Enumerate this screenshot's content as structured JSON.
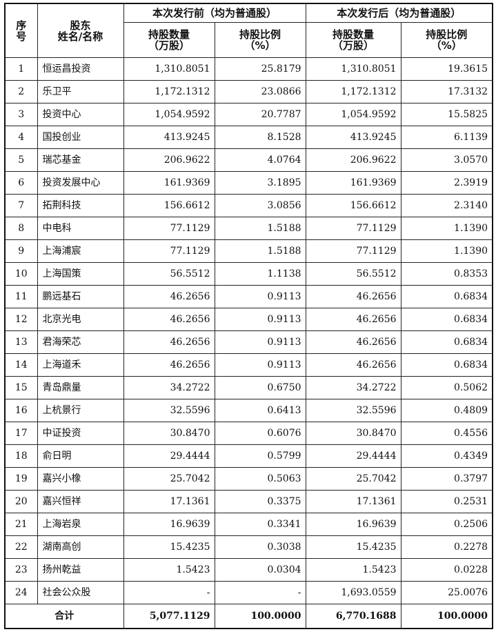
{
  "header": {
    "seq": "序\n号",
    "name": "股东\n姓名/名称",
    "group_before": "本次发行前（均为普通股）",
    "group_after": "本次发行后（均为普通股）",
    "shares": "持股数量\n（万股）",
    "ratio": "持股比例\n（%）"
  },
  "rows": [
    {
      "no": "1",
      "name": "恒运昌投资",
      "before_shares": "1,310.8051",
      "before_ratio": "25.8179",
      "after_shares": "1,310.8051",
      "after_ratio": "19.3615"
    },
    {
      "no": "2",
      "name": "乐卫平",
      "before_shares": "1,172.1312",
      "before_ratio": "23.0866",
      "after_shares": "1,172.1312",
      "after_ratio": "17.3132"
    },
    {
      "no": "3",
      "name": "投资中心",
      "before_shares": "1,054.9592",
      "before_ratio": "20.7787",
      "after_shares": "1,054.9592",
      "after_ratio": "15.5825"
    },
    {
      "no": "4",
      "name": "国投创业",
      "before_shares": "413.9245",
      "before_ratio": "8.1528",
      "after_shares": "413.9245",
      "after_ratio": "6.1139"
    },
    {
      "no": "5",
      "name": "瑞芯基金",
      "before_shares": "206.9622",
      "before_ratio": "4.0764",
      "after_shares": "206.9622",
      "after_ratio": "3.0570"
    },
    {
      "no": "6",
      "name": "投资发展中心",
      "before_shares": "161.9369",
      "before_ratio": "3.1895",
      "after_shares": "161.9369",
      "after_ratio": "2.3919"
    },
    {
      "no": "7",
      "name": "拓荆科技",
      "before_shares": "156.6612",
      "before_ratio": "3.0856",
      "after_shares": "156.6612",
      "after_ratio": "2.3140"
    },
    {
      "no": "8",
      "name": "中电科",
      "before_shares": "77.1129",
      "before_ratio": "1.5188",
      "after_shares": "77.1129",
      "after_ratio": "1.1390"
    },
    {
      "no": "9",
      "name": "上海浦宸",
      "before_shares": "77.1129",
      "before_ratio": "1.5188",
      "after_shares": "77.1129",
      "after_ratio": "1.1390"
    },
    {
      "no": "10",
      "name": "上海国策",
      "before_shares": "56.5512",
      "before_ratio": "1.1138",
      "after_shares": "56.5512",
      "after_ratio": "0.8353"
    },
    {
      "no": "11",
      "name": "鹏远基石",
      "before_shares": "46.2656",
      "before_ratio": "0.9113",
      "after_shares": "46.2656",
      "after_ratio": "0.6834"
    },
    {
      "no": "12",
      "name": "北京光电",
      "before_shares": "46.2656",
      "before_ratio": "0.9113",
      "after_shares": "46.2656",
      "after_ratio": "0.6834"
    },
    {
      "no": "13",
      "name": "君海荣芯",
      "before_shares": "46.2656",
      "before_ratio": "0.9113",
      "after_shares": "46.2656",
      "after_ratio": "0.6834"
    },
    {
      "no": "14",
      "name": "上海道禾",
      "before_shares": "46.2656",
      "before_ratio": "0.9113",
      "after_shares": "46.2656",
      "after_ratio": "0.6834"
    },
    {
      "no": "15",
      "name": "青岛鼎量",
      "before_shares": "34.2722",
      "before_ratio": "0.6750",
      "after_shares": "34.2722",
      "after_ratio": "0.5062"
    },
    {
      "no": "16",
      "name": "上杭景行",
      "before_shares": "32.5596",
      "before_ratio": "0.6413",
      "after_shares": "32.5596",
      "after_ratio": "0.4809"
    },
    {
      "no": "17",
      "name": "中证投资",
      "before_shares": "30.8470",
      "before_ratio": "0.6076",
      "after_shares": "30.8470",
      "after_ratio": "0.4556"
    },
    {
      "no": "18",
      "name": "俞日明",
      "before_shares": "29.4444",
      "before_ratio": "0.5799",
      "after_shares": "29.4444",
      "after_ratio": "0.4349"
    },
    {
      "no": "19",
      "name": "嘉兴小橡",
      "before_shares": "25.7042",
      "before_ratio": "0.5063",
      "after_shares": "25.7042",
      "after_ratio": "0.3797"
    },
    {
      "no": "20",
      "name": "嘉兴恒祥",
      "before_shares": "17.1361",
      "before_ratio": "0.3375",
      "after_shares": "17.1361",
      "after_ratio": "0.2531"
    },
    {
      "no": "21",
      "name": "上海岩泉",
      "before_shares": "16.9639",
      "before_ratio": "0.3341",
      "after_shares": "16.9639",
      "after_ratio": "0.2506"
    },
    {
      "no": "22",
      "name": "湖南高创",
      "before_shares": "15.4235",
      "before_ratio": "0.3038",
      "after_shares": "15.4235",
      "after_ratio": "0.2278"
    },
    {
      "no": "23",
      "name": "扬州乾益",
      "before_shares": "1.5423",
      "before_ratio": "0.0304",
      "after_shares": "1.5423",
      "after_ratio": "0.0228"
    },
    {
      "no": "24",
      "name": "社会公众股",
      "before_shares": "-",
      "before_ratio": "-",
      "after_shares": "1,693.0559",
      "after_ratio": "25.0076"
    }
  ],
  "total": {
    "label": "合计",
    "before_shares": "5,077.1129",
    "before_ratio": "100.0000",
    "after_shares": "6,770.1688",
    "after_ratio": "100.0000"
  }
}
